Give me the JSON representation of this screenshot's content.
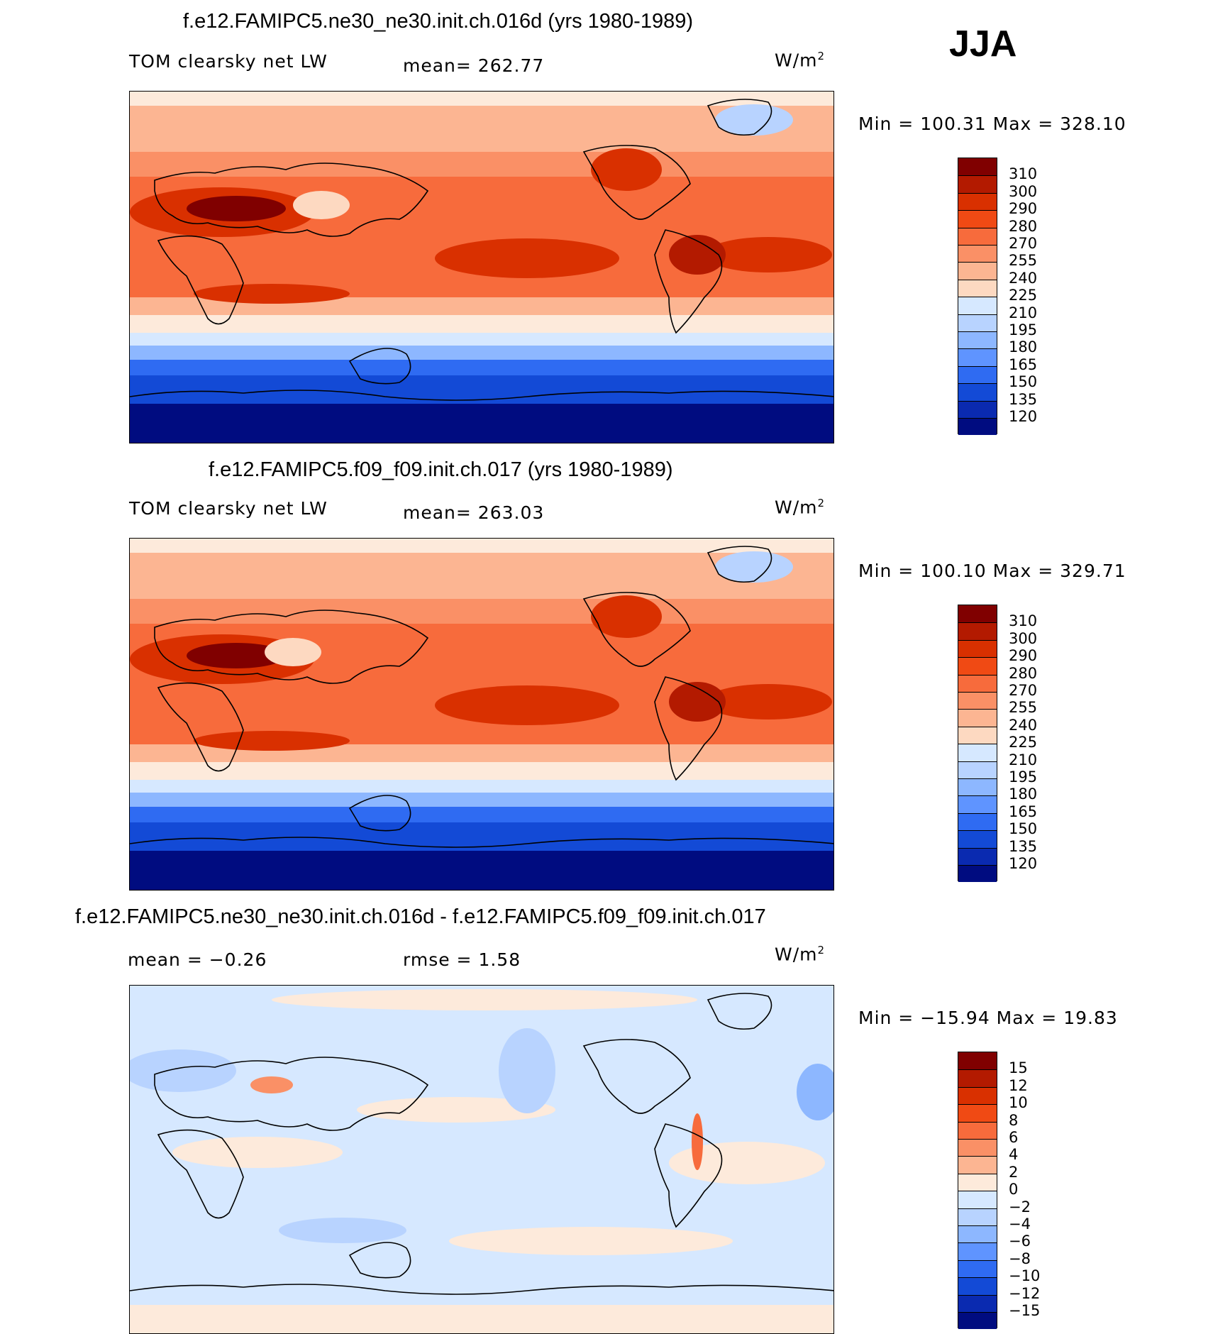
{
  "season": "JJA",
  "panels": [
    {
      "id": "ne30",
      "title": "f.e12.FAMIPC5.ne30_ne30.init.ch.016d (yrs 1980-1989)",
      "left_label": "TOM clearsky net LW",
      "center_label": "mean=  262.77",
      "units_base": "W/m",
      "units_exp": "2",
      "minmax": "Min  =  100.31  Max  =  328.10",
      "colorbar_levels": [
        "310",
        "300",
        "290",
        "280",
        "270",
        "255",
        "240",
        "225",
        "210",
        "195",
        "180",
        "165",
        "150",
        "135",
        "120"
      ],
      "colorbar_colors": [
        "#800000",
        "#b31a00",
        "#d93000",
        "#f04a14",
        "#f76b3c",
        "#fa9066",
        "#fcb592",
        "#fdd9c1",
        "#d6e8ff",
        "#b8d3ff",
        "#8db7ff",
        "#5f94ff",
        "#2f6bf2",
        "#134ad6",
        "#0a2ab0",
        "#000c80"
      ]
    },
    {
      "id": "f09",
      "title": "f.e12.FAMIPC5.f09_f09.init.ch.017 (yrs 1980-1989)",
      "left_label": "TOM clearsky net LW",
      "center_label": "mean=  263.03",
      "units_base": "W/m",
      "units_exp": "2",
      "minmax": "Min  =  100.10  Max  =  329.71",
      "colorbar_levels": [
        "310",
        "300",
        "290",
        "280",
        "270",
        "255",
        "240",
        "225",
        "210",
        "195",
        "180",
        "165",
        "150",
        "135",
        "120"
      ],
      "colorbar_colors": [
        "#800000",
        "#b31a00",
        "#d93000",
        "#f04a14",
        "#f76b3c",
        "#fa9066",
        "#fcb592",
        "#fdd9c1",
        "#d6e8ff",
        "#b8d3ff",
        "#8db7ff",
        "#5f94ff",
        "#2f6bf2",
        "#134ad6",
        "#0a2ab0",
        "#000c80"
      ]
    },
    {
      "id": "diff",
      "title": "f.e12.FAMIPC5.ne30_ne30.init.ch.016d - f.e12.FAMIPC5.f09_f09.init.ch.017",
      "left_label": "mean  =    −0.26",
      "center_label": "rmse  =     1.58",
      "units_base": "W/m",
      "units_exp": "2",
      "minmax": "Min  =  −15.94  Max  =    19.83",
      "colorbar_levels": [
        "15",
        "12",
        "10",
        "8",
        "6",
        "4",
        "2",
        "0",
        "−2",
        "−4",
        "−6",
        "−8",
        "−10",
        "−12",
        "−15"
      ],
      "colorbar_colors": [
        "#800000",
        "#b31a00",
        "#d93000",
        "#f04a14",
        "#f76b3c",
        "#fa9066",
        "#fcb592",
        "#fdeadb",
        "#d6e8ff",
        "#b8d3ff",
        "#8db7ff",
        "#5f94ff",
        "#2f6bf2",
        "#134ad6",
        "#0a2ab0",
        "#000c80"
      ]
    }
  ]
}
